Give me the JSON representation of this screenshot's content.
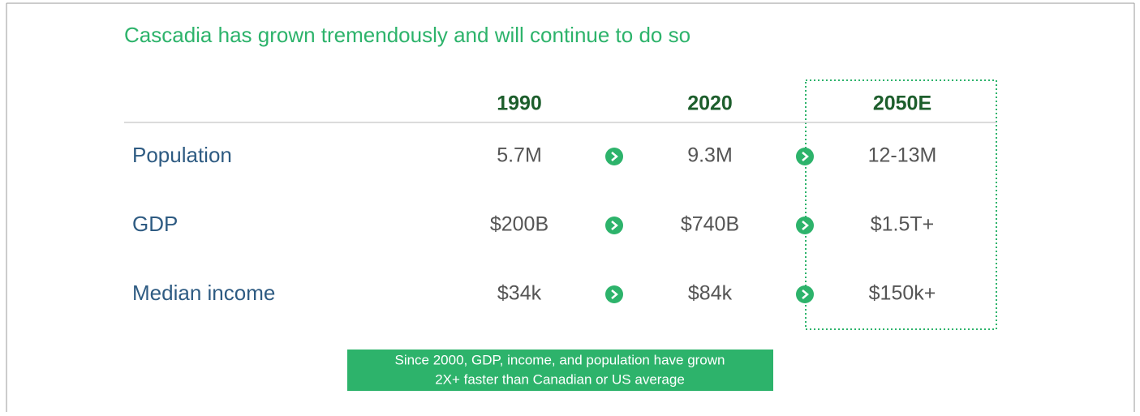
{
  "title": "Cascadia has grown tremendously and will continue to do so",
  "table": {
    "header": [
      "1990",
      "2020",
      "2050E"
    ],
    "rows": [
      [
        "Population",
        "5.7M",
        "9.3M",
        "12-13M"
      ],
      [
        "GDP",
        "$200B",
        "$740B",
        "$1.5T+"
      ],
      [
        "Median income",
        "$34k",
        "$84k",
        "$150k+"
      ]
    ]
  },
  "note": [
    "Since 2000, GDP, income, and population have grown",
    "2X+ faster than Canadian or US average"
  ]
}
